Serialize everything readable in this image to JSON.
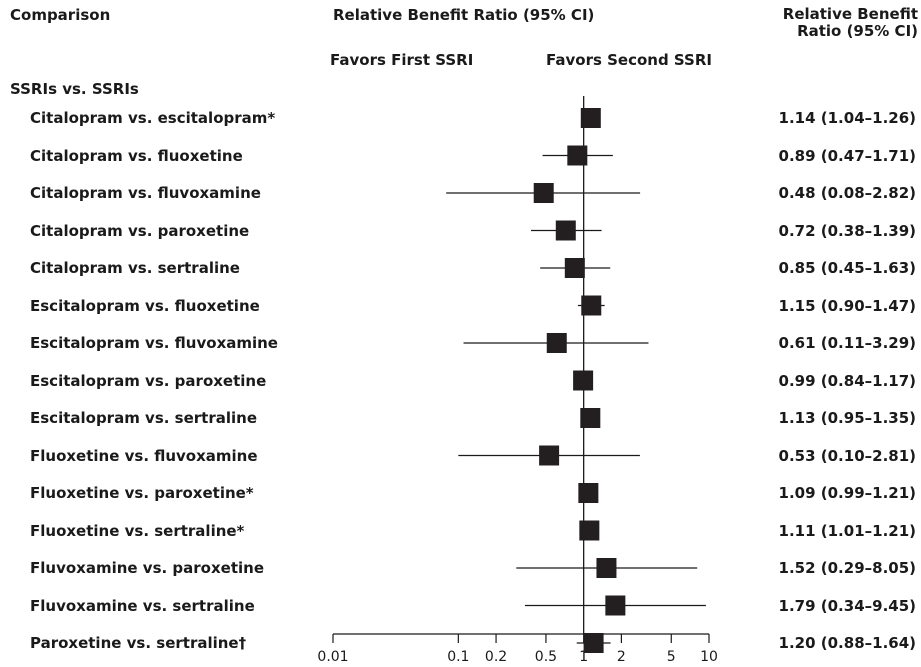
{
  "header": {
    "comparison": "Comparison",
    "center_title": "Relative Benefit Ratio (95% CI)",
    "right_title_line1": "Relative Benefit",
    "right_title_line2": "Ratio (95% CI)",
    "favors_first": "Favors First SSRI",
    "favors_second": "Favors Second SSRI"
  },
  "section_label": "SSRIs vs. SSRIs",
  "chart_data": {
    "type": "forest",
    "scale": "log",
    "xlim": [
      0.01,
      10
    ],
    "reference_line": 1,
    "ticks": [
      {
        "value": 0.01,
        "label": "0.01"
      },
      {
        "value": 0.1,
        "label": "0.1"
      },
      {
        "value": 0.2,
        "label": "0.2"
      },
      {
        "value": 0.5,
        "label": "0.5"
      },
      {
        "value": 1,
        "label": "1"
      },
      {
        "value": 2,
        "label": "2"
      },
      {
        "value": 5,
        "label": "5"
      },
      {
        "value": 10,
        "label": "10"
      }
    ],
    "rows": [
      {
        "label": "Citalopram vs. escitalopram*",
        "estimate": 1.14,
        "lower": 1.04,
        "upper": 1.26,
        "text": "1.14 (1.04–1.26)"
      },
      {
        "label": "Citalopram vs. fluoxetine",
        "estimate": 0.89,
        "lower": 0.47,
        "upper": 1.71,
        "text": "0.89 (0.47–1.71)"
      },
      {
        "label": "Citalopram vs. fluvoxamine",
        "estimate": 0.48,
        "lower": 0.08,
        "upper": 2.82,
        "text": "0.48 (0.08–2.82)"
      },
      {
        "label": "Citalopram vs. paroxetine",
        "estimate": 0.72,
        "lower": 0.38,
        "upper": 1.39,
        "text": "0.72 (0.38–1.39)"
      },
      {
        "label": "Citalopram vs. sertraline",
        "estimate": 0.85,
        "lower": 0.45,
        "upper": 1.63,
        "text": "0.85 (0.45–1.63)"
      },
      {
        "label": "Escitalopram vs. fluoxetine",
        "estimate": 1.15,
        "lower": 0.9,
        "upper": 1.47,
        "text": "1.15 (0.90–1.47)"
      },
      {
        "label": "Escitalopram vs. fluvoxamine",
        "estimate": 0.61,
        "lower": 0.11,
        "upper": 3.29,
        "text": "0.61 (0.11–3.29)"
      },
      {
        "label": "Escitalopram vs. paroxetine",
        "estimate": 0.99,
        "lower": 0.84,
        "upper": 1.17,
        "text": "0.99 (0.84–1.17)"
      },
      {
        "label": "Escitalopram vs. sertraline",
        "estimate": 1.13,
        "lower": 0.95,
        "upper": 1.35,
        "text": "1.13 (0.95–1.35)"
      },
      {
        "label": "Fluoxetine vs. fluvoxamine",
        "estimate": 0.53,
        "lower": 0.1,
        "upper": 2.81,
        "text": "0.53 (0.10–2.81)"
      },
      {
        "label": "Fluoxetine vs. paroxetine*",
        "estimate": 1.09,
        "lower": 0.99,
        "upper": 1.21,
        "text": "1.09 (0.99–1.21)"
      },
      {
        "label": "Fluoxetine vs. sertraline*",
        "estimate": 1.11,
        "lower": 1.01,
        "upper": 1.21,
        "text": "1.11 (1.01–1.21)"
      },
      {
        "label": "Fluvoxamine vs. paroxetine",
        "estimate": 1.52,
        "lower": 0.29,
        "upper": 8.05,
        "text": "1.52 (0.29–8.05)"
      },
      {
        "label": "Fluvoxamine vs. sertraline",
        "estimate": 1.79,
        "lower": 0.34,
        "upper": 9.45,
        "text": "1.79 (0.34–9.45)"
      },
      {
        "label": "Paroxetine vs. sertraline†",
        "estimate": 1.2,
        "lower": 0.88,
        "upper": 1.64,
        "text": "1.20 (0.88–1.64)"
      }
    ]
  }
}
